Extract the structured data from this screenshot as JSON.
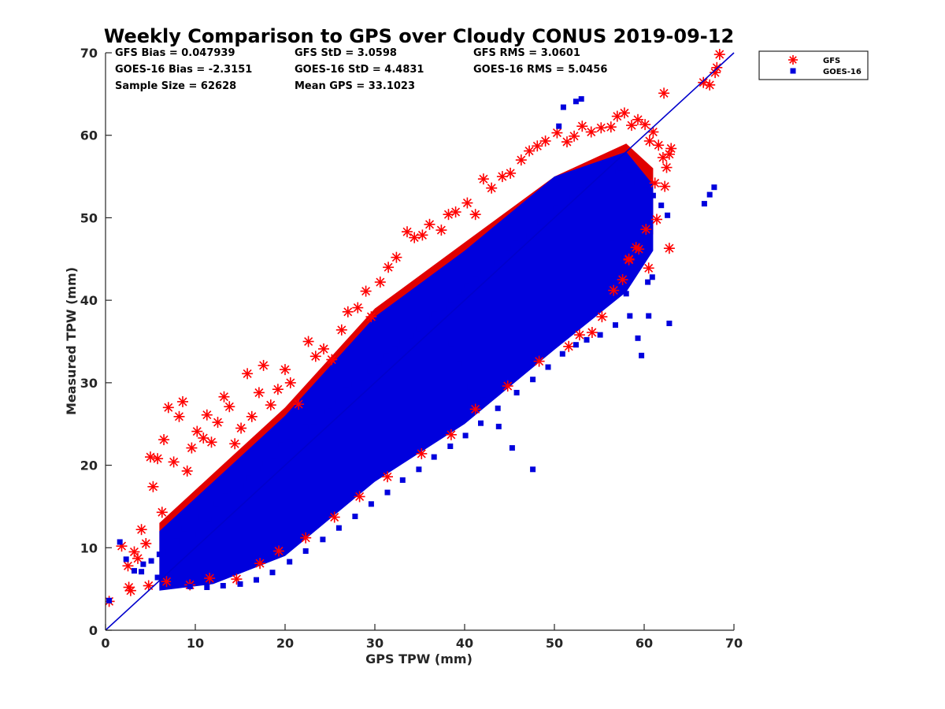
{
  "chart_data": {
    "type": "scatter",
    "title": "Weekly Comparison to GPS over Cloudy CONUS 2019-09-12",
    "xlabel": "GPS TPW (mm)",
    "ylabel": "Measured TPW (mm)",
    "xlim": [
      0,
      70
    ],
    "ylim": [
      0,
      70
    ],
    "x_ticks": [
      "0",
      "10",
      "20",
      "30",
      "40",
      "50",
      "60",
      "70"
    ],
    "y_ticks": [
      "0",
      "10",
      "20",
      "30",
      "40",
      "50",
      "60",
      "70"
    ],
    "grid": false,
    "legend_position": "outside-top-right",
    "reference_line": {
      "label": "",
      "x": [
        0,
        70
      ],
      "y": [
        0,
        70
      ],
      "color": "#0000cc"
    },
    "stats": [
      [
        "GFS Bias = 0.047939",
        "GFS StD = 3.0598",
        "GFS RMS = 3.0601"
      ],
      [
        "GOES-16 Bias = -2.3151",
        "GOES-16 StD = 4.4831",
        "GOES-16 RMS = 5.0456"
      ],
      [
        "Sample Size = 62628",
        "Mean GPS = 33.1023",
        ""
      ]
    ],
    "series": [
      {
        "name": "GFS",
        "marker": "asterisk",
        "color": "#ff0000",
        "x": [
          0.4,
          1.8,
          2.5,
          2.8,
          3.2,
          3.6,
          4.0,
          4.5,
          5.0,
          5.3,
          5.8,
          6.3,
          6.5,
          7.0,
          7.6,
          8.2,
          8.6,
          9.1,
          9.6,
          10.2,
          10.9,
          11.3,
          11.8,
          12.5,
          13.2,
          13.8,
          14.4,
          15.1,
          15.8,
          16.3,
          17.1,
          17.6,
          18.4,
          19.2,
          20.0,
          20.6,
          21.5,
          22.6,
          23.4,
          24.3,
          25.2,
          26.3,
          27.0,
          28.1,
          29.0,
          29.6,
          30.6,
          31.5,
          32.4,
          33.6,
          34.4,
          35.3,
          36.1,
          37.4,
          38.2,
          39.0,
          40.3,
          41.2,
          42.1,
          43.0,
          44.2,
          45.1,
          46.3,
          47.2,
          48.1,
          49.0,
          50.3,
          51.4,
          52.2,
          53.1,
          54.1,
          55.2,
          56.3,
          57.0,
          57.8,
          58.6,
          59.3,
          60.1,
          60.6,
          61.0,
          61.6,
          62.1,
          62.5,
          62.8,
          63.0,
          61.4,
          60.2,
          59.4,
          58.3,
          57.6,
          56.6,
          55.3,
          54.2,
          52.8,
          51.6,
          48.3,
          44.8,
          41.2,
          38.5,
          35.2,
          31.4,
          28.3,
          25.5,
          22.3,
          19.3,
          17.2,
          14.6,
          11.6,
          9.4,
          6.8,
          4.8,
          2.6,
          62.2,
          66.6,
          67.3,
          67.9,
          68.1,
          68.4,
          61.2,
          62.3,
          62.8,
          60.5,
          59.1,
          58.3
        ],
        "y": [
          3.5,
          10.2,
          7.8,
          4.8,
          9.5,
          8.7,
          12.2,
          10.5,
          21.0,
          17.4,
          20.8,
          14.3,
          23.1,
          27.0,
          20.4,
          25.9,
          27.7,
          19.3,
          22.1,
          24.1,
          23.3,
          26.1,
          22.8,
          25.2,
          28.3,
          27.1,
          22.6,
          24.5,
          31.1,
          25.9,
          28.8,
          32.1,
          27.3,
          29.2,
          31.6,
          30.0,
          27.4,
          35.0,
          33.2,
          34.1,
          32.8,
          36.4,
          38.6,
          39.1,
          41.1,
          38.0,
          42.2,
          44.0,
          45.2,
          48.3,
          47.6,
          47.9,
          49.2,
          48.5,
          50.4,
          50.7,
          51.8,
          50.4,
          54.7,
          53.6,
          55.0,
          55.4,
          57.0,
          58.1,
          58.7,
          59.3,
          60.3,
          59.2,
          59.9,
          61.1,
          60.4,
          60.9,
          61.0,
          62.3,
          62.7,
          61.2,
          61.9,
          61.3,
          59.3,
          60.4,
          58.8,
          57.3,
          56.1,
          57.7,
          58.4,
          49.8,
          48.6,
          46.2,
          45.0,
          42.5,
          41.2,
          38.0,
          36.1,
          35.8,
          34.4,
          32.6,
          29.6,
          26.8,
          23.7,
          21.4,
          18.6,
          16.2,
          13.7,
          11.2,
          9.6,
          8.1,
          6.2,
          6.3,
          5.5,
          5.9,
          5.4,
          5.2,
          65.1,
          66.4,
          66.1,
          67.6,
          68.2,
          69.8,
          54.2,
          53.8,
          46.3,
          43.9,
          46.4,
          44.9
        ]
      },
      {
        "name": "GOES-16",
        "marker": "square",
        "color": "#0000dd",
        "x": [
          0.4,
          1.6,
          2.3,
          3.2,
          4.2,
          5.1,
          6.0,
          7.0,
          7.9,
          8.8,
          9.7,
          10.6,
          11.5,
          12.4,
          13.3,
          14.2,
          15.1,
          16.0,
          16.9,
          17.8,
          18.7,
          19.6,
          20.5,
          21.4,
          22.3,
          23.2,
          24.1,
          25.0,
          25.9,
          26.8,
          27.7,
          28.6,
          29.5,
          30.4,
          31.3,
          32.2,
          33.1,
          34.0,
          34.9,
          35.8,
          36.7,
          37.6,
          38.5,
          39.4,
          40.3,
          41.2,
          42.1,
          43.0,
          43.9,
          44.8,
          45.7,
          46.6,
          47.5,
          48.4,
          49.3,
          50.2,
          51.1,
          52.0,
          52.9,
          53.8,
          54.7,
          55.6,
          56.5,
          57.4,
          58.3,
          59.2,
          60.1,
          61.0,
          61.9,
          62.6,
          66.7,
          67.3,
          67.8,
          60.9,
          59.3,
          58.4,
          56.8,
          55.1,
          53.6,
          52.4,
          50.9,
          49.3,
          47.6,
          45.8,
          43.7,
          41.8,
          40.1,
          38.4,
          36.6,
          34.9,
          33.1,
          31.4,
          29.6,
          27.8,
          26.0,
          24.2,
          22.3,
          20.5,
          18.6,
          16.8,
          15.0,
          13.1,
          11.3,
          9.4,
          7.6,
          5.8,
          4.0,
          53.0,
          52.4,
          51.0,
          50.5,
          62.8,
          60.5,
          60.4,
          59.7,
          58.0,
          56.4,
          47.6,
          45.3,
          43.8,
          42.1,
          40.6,
          39.4,
          38.5
        ],
        "y": [
          3.6,
          10.7,
          8.6,
          7.2,
          8.0,
          8.4,
          9.2,
          9.5,
          10.8,
          12.3,
          11.6,
          13.7,
          13.5,
          15.4,
          16.2,
          16.9,
          17.6,
          18.4,
          19.6,
          20.2,
          21.1,
          22.4,
          22.8,
          23.9,
          24.6,
          25.3,
          26.5,
          27.2,
          27.7,
          29.1,
          29.8,
          30.6,
          31.4,
          32.6,
          33.2,
          34.1,
          35.0,
          35.7,
          36.6,
          37.8,
          38.3,
          39.1,
          40.0,
          41.1,
          41.7,
          42.6,
          43.5,
          44.6,
          45.2,
          46.3,
          46.9,
          47.8,
          48.6,
          49.5,
          50.1,
          51.2,
          51.9,
          52.4,
          53.3,
          54.0,
          54.5,
          55.1,
          55.6,
          56.1,
          55.8,
          54.2,
          53.4,
          52.7,
          51.5,
          50.3,
          51.7,
          52.8,
          53.7,
          42.8,
          35.4,
          38.1,
          37.0,
          35.8,
          35.2,
          34.6,
          33.5,
          31.9,
          30.4,
          28.8,
          26.9,
          25.1,
          23.6,
          22.3,
          21.0,
          19.5,
          18.2,
          16.7,
          15.3,
          13.8,
          12.4,
          11.0,
          9.6,
          8.3,
          7.0,
          6.1,
          5.6,
          5.4,
          5.2,
          5.3,
          5.9,
          6.4,
          7.1,
          64.4,
          64.1,
          63.4,
          61.1,
          37.2,
          38.1,
          42.2,
          33.3,
          40.8,
          46.9,
          19.5,
          22.1,
          24.7,
          27.9,
          29.5,
          32.3,
          34.8
        ]
      }
    ]
  }
}
